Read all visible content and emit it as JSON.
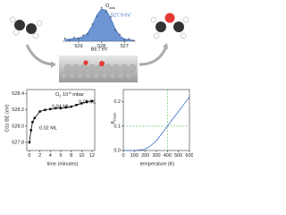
{
  "chart_data": [
    {
      "type": "area",
      "x_label": "BE / eV",
      "peak_label": {
        "main": "O",
        "sub": "ads"
      },
      "annotation": "527.9 eV",
      "x": [
        529.6,
        529.4,
        529.2,
        529.0,
        528.8,
        528.6,
        528.4,
        528.2,
        528.0,
        527.8,
        527.6,
        527.4,
        527.2,
        527.0,
        526.8,
        526.6
      ],
      "values": [
        0.05,
        0.06,
        0.08,
        0.1,
        0.14,
        0.25,
        0.48,
        0.8,
        0.98,
        0.95,
        0.7,
        0.38,
        0.16,
        0.07,
        0.04,
        0.03
      ],
      "raw": [
        0.08,
        0.03,
        0.11,
        0.07,
        0.18,
        0.22,
        0.52,
        0.76,
        1.02,
        0.9,
        0.74,
        0.34,
        0.2,
        0.04,
        0.07,
        0.02
      ],
      "xlim": [
        529.7,
        526.5
      ],
      "ylim": [
        0,
        1.15
      ],
      "xticks": [
        529,
        528,
        527
      ],
      "color": "#3d72c6"
    },
    {
      "type": "line",
      "y_label": "O1s BE (eV)",
      "x_label": "time (minutes)",
      "gas": {
        "main": "O",
        "sub": "2",
        "text": " 10",
        "sup": "-6",
        "unit": " mbar"
      },
      "annotations": [
        "0.02 ML",
        "0.04 ML",
        "0.09 ML"
      ],
      "x": [
        0,
        0.3,
        0.6,
        1,
        2,
        3,
        4,
        5,
        6,
        7,
        8,
        9,
        10,
        11,
        12
      ],
      "values": [
        527.8,
        527.95,
        528.05,
        528.1,
        528.18,
        528.2,
        528.21,
        528.22,
        528.22,
        528.23,
        528.24,
        528.26,
        528.28,
        528.3,
        528.31
      ],
      "xlim": [
        -0.5,
        12.5
      ],
      "ylim": [
        527.7,
        528.45
      ],
      "xticks": [
        0,
        2,
        4,
        6,
        8,
        10,
        12
      ],
      "yticks": [
        527.8,
        {
          "value": 528.0,
          "label": "528.0"
        },
        528.2,
        528.4
      ],
      "color": "#000000"
    },
    {
      "type": "line",
      "y_label": {
        "main": "θ",
        "sub": "Oads"
      },
      "x_label": "temperature (K)",
      "x": [
        0,
        100,
        200,
        250,
        300,
        350,
        400,
        450,
        500,
        550,
        600
      ],
      "values": [
        0,
        0,
        0.005,
        0.02,
        0.04,
        0.07,
        0.1,
        0.13,
        0.16,
        0.19,
        0.22
      ],
      "xlim": [
        0,
        600
      ],
      "ylim": [
        0,
        0.25
      ],
      "xticks": [
        0,
        100,
        200,
        300,
        400,
        500,
        600
      ],
      "yticks": [
        {
          "value": 0,
          "label": "0.0"
        },
        0.1,
        0.2
      ],
      "color": "#3d6fc8",
      "reference": {
        "x": 400,
        "y": 0.1,
        "color": "#5cb85c"
      }
    }
  ]
}
